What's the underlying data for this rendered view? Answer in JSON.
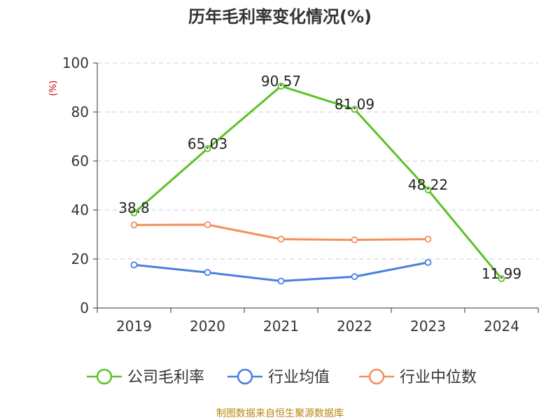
{
  "title": "历年毛利率变化情况(%)",
  "credit": "制图数据来自恒生聚源数据库",
  "colors": {
    "company": "#5cc126",
    "industry_avg": "#4a7fdd",
    "industry_median": "#f58f5a",
    "grid": "#cccccc",
    "axis": "#333333"
  },
  "chart_data": {
    "type": "line",
    "title": "历年毛利率变化情况(%)",
    "xlabel": "",
    "ylabel": "(%)",
    "categories": [
      "2019",
      "2020",
      "2021",
      "2022",
      "2023",
      "2024"
    ],
    "ylim": [
      0,
      100
    ],
    "yticks": [
      0,
      20,
      40,
      60,
      80,
      100
    ],
    "grid": "horizontal dashed",
    "legend": "bottom",
    "series": [
      {
        "name": "公司毛利率",
        "values": [
          38.8,
          65.03,
          90.57,
          81.09,
          48.22,
          11.99
        ],
        "labels": [
          "38.8",
          "65.03",
          "90.57",
          "81.09",
          "48.22",
          "11.99"
        ],
        "color": "#5cc126"
      },
      {
        "name": "行业均值",
        "values": [
          17.6,
          14.5,
          11.0,
          12.8,
          18.6,
          null
        ],
        "color": "#4a7fdd"
      },
      {
        "name": "行业中位数",
        "values": [
          33.9,
          34.0,
          28.1,
          27.8,
          28.1,
          null
        ],
        "color": "#f58f5a"
      }
    ]
  }
}
